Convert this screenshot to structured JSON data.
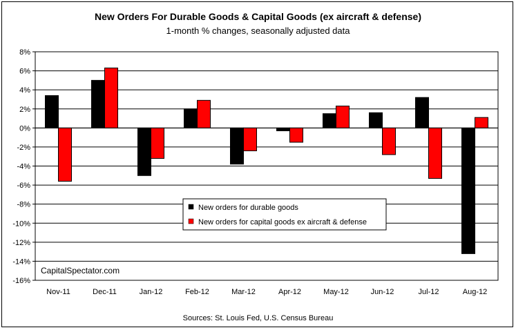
{
  "header": {
    "title": "New Orders For Durable Goods & Capital Goods (ex aircraft & defense)",
    "subtitle": "1-month % changes, seasonally adjusted data"
  },
  "footer": {
    "source": "Sources: St. Louis Fed, U.S. Census Bureau"
  },
  "watermark": "CapitalSpectator.com",
  "chart_data": {
    "type": "bar",
    "title": "New Orders For Durable Goods & Capital Goods (ex aircraft & defense)",
    "subtitle": "1-month % changes, seasonally adjusted data",
    "categories": [
      "Nov-11",
      "Dec-11",
      "Jan-12",
      "Feb-12",
      "Mar-12",
      "Apr-12",
      "May-12",
      "Jun-12",
      "Jul-12",
      "Aug-12"
    ],
    "series": [
      {
        "name": "New orders for durable goods",
        "color": "#000000",
        "values": [
          3.4,
          5.0,
          -5.0,
          2.0,
          -3.8,
          -0.3,
          1.5,
          1.6,
          3.2,
          -13.2
        ]
      },
      {
        "name": "New orders for capital goods ex aircraft & defense",
        "color": "#ff0000",
        "values": [
          -5.6,
          6.3,
          -3.2,
          2.9,
          -2.4,
          -1.5,
          2.3,
          -2.8,
          -5.3,
          1.1
        ]
      }
    ],
    "y_ticks": [
      "8%",
      "6%",
      "4%",
      "2%",
      "0%",
      "-2%",
      "-4%",
      "-6%",
      "-8%",
      "-10%",
      "-12%",
      "-14%",
      "-16%"
    ],
    "ylim": [
      -16,
      8
    ],
    "y_step": 2,
    "grid": true,
    "legend_position": "lower-center"
  }
}
